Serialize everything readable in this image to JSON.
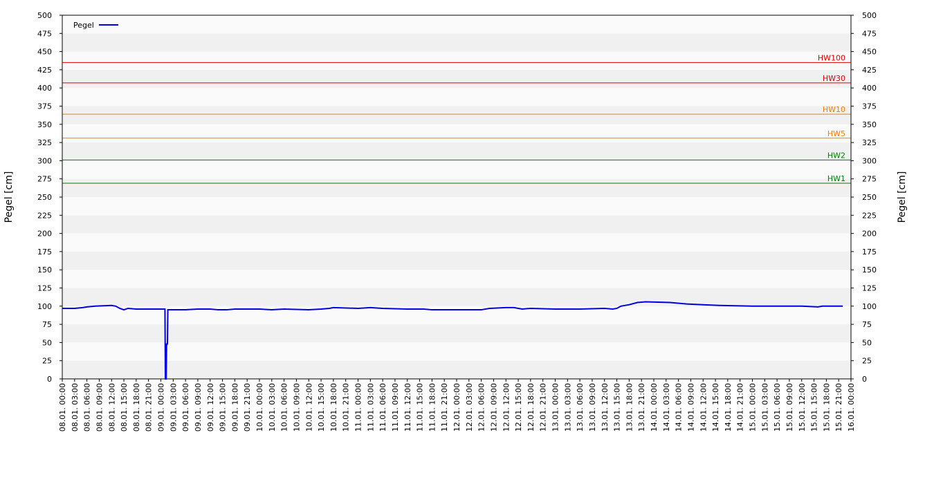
{
  "chart_data": {
    "type": "line",
    "ylabel": "Pegel [cm]",
    "xlim": [
      0,
      192
    ],
    "ylim": [
      0,
      500
    ],
    "yticks": [
      0,
      25,
      50,
      75,
      100,
      125,
      150,
      175,
      200,
      225,
      250,
      275,
      300,
      325,
      350,
      375,
      400,
      425,
      450,
      475,
      500
    ],
    "xticks": [
      {
        "value": 0,
        "label": "08.01. 00:00"
      },
      {
        "value": 3,
        "label": "08.01. 03:00"
      },
      {
        "value": 6,
        "label": "08.01. 06:00"
      },
      {
        "value": 9,
        "label": "08.01. 09:00"
      },
      {
        "value": 12,
        "label": "08.01. 12:00"
      },
      {
        "value": 15,
        "label": "08.01. 15:00"
      },
      {
        "value": 18,
        "label": "08.01. 18:00"
      },
      {
        "value": 21,
        "label": "08.01. 21:00"
      },
      {
        "value": 24,
        "label": "09.01. 00:00"
      },
      {
        "value": 27,
        "label": "09.01. 03:00"
      },
      {
        "value": 30,
        "label": "09.01. 06:00"
      },
      {
        "value": 33,
        "label": "09.01. 09:00"
      },
      {
        "value": 36,
        "label": "09.01. 12:00"
      },
      {
        "value": 39,
        "label": "09.01. 15:00"
      },
      {
        "value": 42,
        "label": "09.01. 18:00"
      },
      {
        "value": 45,
        "label": "09.01. 21:00"
      },
      {
        "value": 48,
        "label": "10.01. 00:00"
      },
      {
        "value": 51,
        "label": "10.01. 03:00"
      },
      {
        "value": 54,
        "label": "10.01. 06:00"
      },
      {
        "value": 57,
        "label": "10.01. 09:00"
      },
      {
        "value": 60,
        "label": "10.01. 12:00"
      },
      {
        "value": 63,
        "label": "10.01. 15:00"
      },
      {
        "value": 66,
        "label": "10.01. 18:00"
      },
      {
        "value": 69,
        "label": "10.01. 21:00"
      },
      {
        "value": 72,
        "label": "11.01. 00:00"
      },
      {
        "value": 75,
        "label": "11.01. 03:00"
      },
      {
        "value": 78,
        "label": "11.01. 06:00"
      },
      {
        "value": 81,
        "label": "11.01. 09:00"
      },
      {
        "value": 84,
        "label": "11.01. 12:00"
      },
      {
        "value": 87,
        "label": "11.01. 15:00"
      },
      {
        "value": 90,
        "label": "11.01. 18:00"
      },
      {
        "value": 93,
        "label": "11.01. 21:00"
      },
      {
        "value": 96,
        "label": "12.01. 00:00"
      },
      {
        "value": 99,
        "label": "12.01. 03:00"
      },
      {
        "value": 102,
        "label": "12.01. 06:00"
      },
      {
        "value": 105,
        "label": "12.01. 09:00"
      },
      {
        "value": 108,
        "label": "12.01. 12:00"
      },
      {
        "value": 111,
        "label": "12.01. 15:00"
      },
      {
        "value": 114,
        "label": "12.01. 18:00"
      },
      {
        "value": 117,
        "label": "12.01. 21:00"
      },
      {
        "value": 120,
        "label": "13.01. 00:00"
      },
      {
        "value": 123,
        "label": "13.01. 03:00"
      },
      {
        "value": 126,
        "label": "13.01. 06:00"
      },
      {
        "value": 129,
        "label": "13.01. 09:00"
      },
      {
        "value": 132,
        "label": "13.01. 12:00"
      },
      {
        "value": 135,
        "label": "13.01. 15:00"
      },
      {
        "value": 138,
        "label": "13.01. 18:00"
      },
      {
        "value": 141,
        "label": "13.01. 21:00"
      },
      {
        "value": 144,
        "label": "14.01. 00:00"
      },
      {
        "value": 147,
        "label": "14.01. 03:00"
      },
      {
        "value": 150,
        "label": "14.01. 06:00"
      },
      {
        "value": 153,
        "label": "14.01. 09:00"
      },
      {
        "value": 156,
        "label": "14.01. 12:00"
      },
      {
        "value": 159,
        "label": "14.01. 15:00"
      },
      {
        "value": 162,
        "label": "14.01. 18:00"
      },
      {
        "value": 165,
        "label": "14.01. 21:00"
      },
      {
        "value": 168,
        "label": "15.01. 00:00"
      },
      {
        "value": 171,
        "label": "15.01. 03:00"
      },
      {
        "value": 174,
        "label": "15.01. 06:00"
      },
      {
        "value": 177,
        "label": "15.01. 09:00"
      },
      {
        "value": 180,
        "label": "15.01. 12:00"
      },
      {
        "value": 183,
        "label": "15.01. 15:00"
      },
      {
        "value": 186,
        "label": "15.01. 18:00"
      },
      {
        "value": 189,
        "label": "15.01. 21:00"
      },
      {
        "value": 192,
        "label": "16.01. 00:00"
      }
    ],
    "thresholds": [
      {
        "name": "HW100",
        "value": 435,
        "color": "#e00000"
      },
      {
        "name": "HW30",
        "value": 407,
        "color": "#e00000"
      },
      {
        "name": "HW10",
        "value": 364,
        "color": "#f08000"
      },
      {
        "name": "HW5",
        "value": 331,
        "color": "#f08000"
      },
      {
        "name": "HW2",
        "value": 301,
        "color": "#008000"
      },
      {
        "name": "HW1",
        "value": 269,
        "color": "#008000"
      }
    ],
    "legend": "top-left",
    "series": [
      {
        "name": "Pegel",
        "color": "#0000dd",
        "x": [
          0,
          3,
          5,
          6,
          8,
          12,
          13,
          14,
          15,
          16,
          18,
          21,
          24,
          25,
          25.1,
          25.3,
          25.4,
          25.6,
          25.7,
          30,
          33,
          36,
          38,
          40,
          42,
          48,
          51,
          54,
          60,
          63,
          65,
          66,
          72,
          75,
          78,
          84,
          88,
          90,
          96,
          99,
          102,
          104,
          108,
          110,
          111,
          112,
          114,
          120,
          126,
          132,
          134,
          135,
          136,
          138,
          140,
          142,
          148,
          152,
          156,
          160,
          168,
          175,
          180,
          184,
          185,
          190
        ],
        "values": [
          97,
          97,
          98,
          99,
          100,
          101,
          100,
          97,
          95,
          97,
          96,
          96,
          96,
          96,
          0,
          0,
          48,
          48,
          95,
          95,
          96,
          96,
          95,
          95,
          96,
          96,
          95,
          96,
          95,
          96,
          97,
          98,
          97,
          98,
          97,
          96,
          96,
          95,
          95,
          95,
          95,
          97,
          98,
          98,
          97,
          96,
          97,
          96,
          96,
          97,
          96,
          97,
          100,
          102,
          105,
          106,
          105,
          103,
          102,
          101,
          100,
          100,
          100,
          99,
          100,
          100
        ]
      }
    ]
  }
}
